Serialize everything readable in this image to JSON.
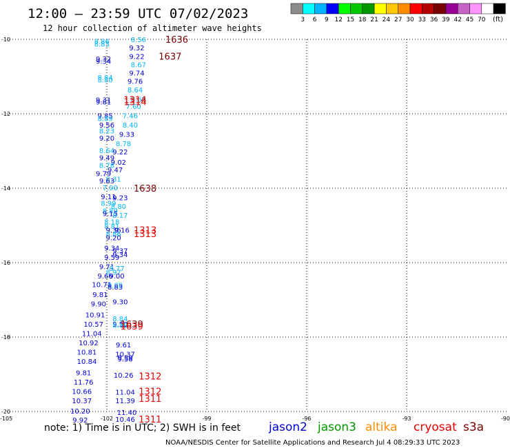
{
  "header": {
    "title": "12:00 – 23:59 UTC 07/02/2023",
    "subtitle": "12 hour collection of altimeter wave heights"
  },
  "legend": {
    "unit": "(ft)",
    "colors": [
      "#8c8c8c",
      "#00ffff",
      "#00b4ff",
      "#0000ff",
      "#00ff00",
      "#00c800",
      "#009600",
      "#ffff00",
      "#ffc800",
      "#ff8c00",
      "#ff0000",
      "#b40000",
      "#780000",
      "#960096",
      "#c864c8",
      "#ff96ff",
      "#ffffff",
      "#000000"
    ],
    "labels": [
      "3",
      "6",
      "9",
      "12",
      "15",
      "18",
      "21",
      "24",
      "27",
      "30",
      "33",
      "36",
      "39",
      "42",
      "45",
      "70"
    ]
  },
  "note": "note:  1) Time is in UTC; 2) SWH is in feet",
  "footer": "NOAA/NESDIS Center for Satellite Applications and Research    Jul  4 08:29:33 UTC 2023",
  "satellites": [
    {
      "name": "jason2",
      "color": "#0000dc"
    },
    {
      "name": "jason3",
      "color": "#009600"
    },
    {
      "name": "altika",
      "color": "#ff8c00"
    },
    {
      "name": "cryosat",
      "color": "#e60000"
    },
    {
      "name": "s3a",
      "color": "#780000"
    }
  ],
  "chart_data": {
    "type": "scatter",
    "title": "12:00 – 23:59 UTC 07/02/2023",
    "subtitle": "12 hour collection of altimeter wave heights",
    "xlim": [
      -105,
      -90
    ],
    "ylim": [
      -20,
      -10
    ],
    "x_ticks": [
      -105,
      -102,
      -99,
      -96,
      -93,
      -90
    ],
    "y_ticks": [
      -10,
      -12,
      -14,
      -16,
      -18,
      -20
    ],
    "grid": true,
    "points": [
      {
        "x": -102.15,
        "y": -10.05,
        "label": "8.86",
        "color": "#00b4ff"
      },
      {
        "x": -102.15,
        "y": -10.12,
        "label": "8.83",
        "color": "#00b4ff"
      },
      {
        "x": -101.05,
        "y": -10.0,
        "label": "8.56",
        "color": "#00b4ff"
      },
      {
        "x": -101.1,
        "y": -10.22,
        "label": "9.32",
        "color": "#0000dc"
      },
      {
        "x": -102.1,
        "y": -10.52,
        "label": "9.32",
        "color": "#0000dc"
      },
      {
        "x": -102.1,
        "y": -10.58,
        "label": "9.34",
        "color": "#0000dc"
      },
      {
        "x": -101.1,
        "y": -10.45,
        "label": "9.22",
        "color": "#0000dc"
      },
      {
        "x": -101.05,
        "y": -10.68,
        "label": "8.67",
        "color": "#00b4ff"
      },
      {
        "x": -101.1,
        "y": -10.9,
        "label": "9.74",
        "color": "#0000dc"
      },
      {
        "x": -102.05,
        "y": -11.02,
        "label": "8.84",
        "color": "#00b4ff"
      },
      {
        "x": -102.05,
        "y": -11.08,
        "label": "8.80",
        "color": "#00b4ff"
      },
      {
        "x": -101.15,
        "y": -11.12,
        "label": "9.76",
        "color": "#0000dc"
      },
      {
        "x": -101.15,
        "y": -11.35,
        "label": "8.64",
        "color": "#00b4ff"
      },
      {
        "x": -102.1,
        "y": -11.62,
        "label": "9.31",
        "color": "#0000dc"
      },
      {
        "x": -102.1,
        "y": -11.68,
        "label": "9.81",
        "color": "#0000dc"
      },
      {
        "x": -101.05,
        "y": -11.6,
        "label": "8.69",
        "color": "#00b4ff"
      },
      {
        "x": -101.2,
        "y": -11.8,
        "label": "7.60",
        "color": "#00b4ff"
      },
      {
        "x": -102.05,
        "y": -12.05,
        "label": "9.85",
        "color": "#0000dc"
      },
      {
        "x": -102.05,
        "y": -12.12,
        "label": "8.89",
        "color": "#00b4ff"
      },
      {
        "x": -101.3,
        "y": -12.05,
        "label": "7.46",
        "color": "#00b4ff"
      },
      {
        "x": -102.0,
        "y": -12.3,
        "label": "9.56",
        "color": "#0000dc"
      },
      {
        "x": -101.3,
        "y": -12.3,
        "label": "8.40",
        "color": "#00b4ff"
      },
      {
        "x": -102.0,
        "y": -12.45,
        "label": "8.23",
        "color": "#00b4ff"
      },
      {
        "x": -101.4,
        "y": -12.55,
        "label": "9.33",
        "color": "#0000dc"
      },
      {
        "x": -102.0,
        "y": -12.65,
        "label": "9.20",
        "color": "#0000dc"
      },
      {
        "x": -101.5,
        "y": -12.8,
        "label": "8.78",
        "color": "#00b4ff"
      },
      {
        "x": -102.0,
        "y": -12.98,
        "label": "8.64",
        "color": "#00b4ff"
      },
      {
        "x": -101.6,
        "y": -13.02,
        "label": "9.22",
        "color": "#0000dc"
      },
      {
        "x": -102.0,
        "y": -13.18,
        "label": "9.49",
        "color": "#0000dc"
      },
      {
        "x": -101.65,
        "y": -13.3,
        "label": "9.02",
        "color": "#0000dc"
      },
      {
        "x": -102.0,
        "y": -13.38,
        "label": "8.78",
        "color": "#00b4ff"
      },
      {
        "x": -101.75,
        "y": -13.5,
        "label": "9.47",
        "color": "#0000dc"
      },
      {
        "x": -102.1,
        "y": -13.6,
        "label": "9.79",
        "color": "#0000dc"
      },
      {
        "x": -101.8,
        "y": -13.75,
        "label": "8.31",
        "color": "#00b4ff"
      },
      {
        "x": -102.0,
        "y": -13.8,
        "label": "9.63",
        "color": "#0000dc"
      },
      {
        "x": -101.9,
        "y": -13.98,
        "label": "7.90",
        "color": "#00b4ff"
      },
      {
        "x": -101.95,
        "y": -14.22,
        "label": "9.11",
        "color": "#0000dc"
      },
      {
        "x": -101.6,
        "y": -14.25,
        "label": "9.23",
        "color": "#0000dc"
      },
      {
        "x": -101.95,
        "y": -14.4,
        "label": "8.99",
        "color": "#00b4ff"
      },
      {
        "x": -101.65,
        "y": -14.48,
        "label": "8.80",
        "color": "#00b4ff"
      },
      {
        "x": -101.9,
        "y": -14.6,
        "label": "8.89",
        "color": "#00b4ff"
      },
      {
        "x": -101.9,
        "y": -14.68,
        "label": "9.15",
        "color": "#0000dc"
      },
      {
        "x": -101.6,
        "y": -14.72,
        "label": "8.17",
        "color": "#00b4ff"
      },
      {
        "x": -101.85,
        "y": -14.9,
        "label": "8.18",
        "color": "#00b4ff"
      },
      {
        "x": -101.85,
        "y": -15.02,
        "label": "8.81",
        "color": "#00b4ff"
      },
      {
        "x": -101.8,
        "y": -15.12,
        "label": "9.36",
        "color": "#0000dc"
      },
      {
        "x": -101.55,
        "y": -15.12,
        "label": "9.16",
        "color": "#0000dc"
      },
      {
        "x": -101.8,
        "y": -15.22,
        "label": "8.86",
        "color": "#00b4ff"
      },
      {
        "x": -101.8,
        "y": -15.32,
        "label": "9.20",
        "color": "#0000dc"
      },
      {
        "x": -101.85,
        "y": -15.6,
        "label": "9.34",
        "color": "#0000dc"
      },
      {
        "x": -101.6,
        "y": -15.68,
        "label": "9.37",
        "color": "#0000dc"
      },
      {
        "x": -101.6,
        "y": -15.78,
        "label": "9.34",
        "color": "#0000dc"
      },
      {
        "x": -101.85,
        "y": -15.85,
        "label": "9.59",
        "color": "#0000dc"
      },
      {
        "x": -102.0,
        "y": -16.1,
        "label": "9.71",
        "color": "#0000dc"
      },
      {
        "x": -101.7,
        "y": -16.15,
        "label": "8.77",
        "color": "#00b4ff"
      },
      {
        "x": -101.8,
        "y": -16.25,
        "label": "8.97",
        "color": "#00b4ff"
      },
      {
        "x": -101.7,
        "y": -16.35,
        "label": "9.00",
        "color": "#0000dc"
      },
      {
        "x": -102.05,
        "y": -16.35,
        "label": "9.66",
        "color": "#0000dc"
      },
      {
        "x": -102.15,
        "y": -16.58,
        "label": "10.71",
        "color": "#0000dc"
      },
      {
        "x": -101.75,
        "y": -16.6,
        "label": "8.88",
        "color": "#00b4ff"
      },
      {
        "x": -101.75,
        "y": -16.65,
        "label": "8.83",
        "color": "#0000dc"
      },
      {
        "x": -102.2,
        "y": -16.85,
        "label": "9.81",
        "color": "#0000dc"
      },
      {
        "x": -102.25,
        "y": -17.1,
        "label": "9.90",
        "color": "#0000dc"
      },
      {
        "x": -101.6,
        "y": -17.05,
        "label": "9.30",
        "color": "#0000dc"
      },
      {
        "x": -102.35,
        "y": -17.4,
        "label": "10.91",
        "color": "#0000dc"
      },
      {
        "x": -101.6,
        "y": -17.5,
        "label": "8.84",
        "color": "#00b4ff"
      },
      {
        "x": -102.4,
        "y": -17.65,
        "label": "10.57",
        "color": "#0000dc"
      },
      {
        "x": -101.6,
        "y": -17.65,
        "label": "9.50",
        "color": "#0000dc"
      },
      {
        "x": -101.6,
        "y": -17.68,
        "label": "8.89",
        "color": "#00b4ff"
      },
      {
        "x": -102.45,
        "y": -17.9,
        "label": "11.04",
        "color": "#0000dc"
      },
      {
        "x": -102.55,
        "y": -18.15,
        "label": "10.92",
        "color": "#0000dc"
      },
      {
        "x": -101.5,
        "y": -18.2,
        "label": "9.61",
        "color": "#0000dc"
      },
      {
        "x": -102.6,
        "y": -18.4,
        "label": "10.81",
        "color": "#0000dc"
      },
      {
        "x": -101.45,
        "y": -18.45,
        "label": "10.37",
        "color": "#0000dc"
      },
      {
        "x": -101.45,
        "y": -18.55,
        "label": "9.59",
        "color": "#0000dc"
      },
      {
        "x": -101.45,
        "y": -18.58,
        "label": "9.56",
        "color": "#0000dc"
      },
      {
        "x": -102.6,
        "y": -18.65,
        "label": "10.84",
        "color": "#0000dc"
      },
      {
        "x": -102.7,
        "y": -18.95,
        "label": "9.81",
        "color": "#0000dc"
      },
      {
        "x": -101.5,
        "y": -19.02,
        "label": "10.26",
        "color": "#0000dc"
      },
      {
        "x": -102.7,
        "y": -19.2,
        "label": "11.76",
        "color": "#0000dc"
      },
      {
        "x": -102.75,
        "y": -19.45,
        "label": "10.66",
        "color": "#0000dc"
      },
      {
        "x": -101.45,
        "y": -19.47,
        "label": "11.04",
        "color": "#0000dc"
      },
      {
        "x": -102.75,
        "y": -19.7,
        "label": "10.37",
        "color": "#0000dc"
      },
      {
        "x": -101.45,
        "y": -19.7,
        "label": "11.39",
        "color": "#0000dc"
      },
      {
        "x": -102.8,
        "y": -19.98,
        "label": "10.20",
        "color": "#0000dc"
      },
      {
        "x": -101.4,
        "y": -20.02,
        "label": "11.40",
        "color": "#0000dc"
      },
      {
        "x": -102.8,
        "y": -20.22,
        "label": "9.92",
        "color": "#0000dc"
      },
      {
        "x": -101.45,
        "y": -20.2,
        "label": "10.46",
        "color": "#0000dc"
      }
    ],
    "time_labels": [
      {
        "x": -99.9,
        "y": -10.0,
        "label": "1636",
        "color": "#780000"
      },
      {
        "x": -100.1,
        "y": -10.45,
        "label": "1637",
        "color": "#780000"
      },
      {
        "x": -101.15,
        "y": -11.62,
        "label": "1314",
        "color": "#e60000"
      },
      {
        "x": -101.15,
        "y": -11.68,
        "label": "1314",
        "color": "#e60000"
      },
      {
        "x": -100.85,
        "y": -14.0,
        "label": "1638",
        "color": "#780000"
      },
      {
        "x": -100.85,
        "y": -15.12,
        "label": "1313",
        "color": "#e60000"
      },
      {
        "x": -100.85,
        "y": -15.22,
        "label": "1313",
        "color": "#e60000"
      },
      {
        "x": -101.25,
        "y": -17.65,
        "label": "1639",
        "color": "#780000"
      },
      {
        "x": -101.25,
        "y": -17.7,
        "label": "1639",
        "color": "#e60000"
      },
      {
        "x": -100.7,
        "y": -19.05,
        "label": "1312",
        "color": "#e60000"
      },
      {
        "x": -100.7,
        "y": -19.45,
        "label": "1312",
        "color": "#e60000"
      },
      {
        "x": -100.7,
        "y": -19.65,
        "label": "1311",
        "color": "#e60000"
      },
      {
        "x": -100.7,
        "y": -20.2,
        "label": "1311",
        "color": "#e60000"
      }
    ]
  }
}
